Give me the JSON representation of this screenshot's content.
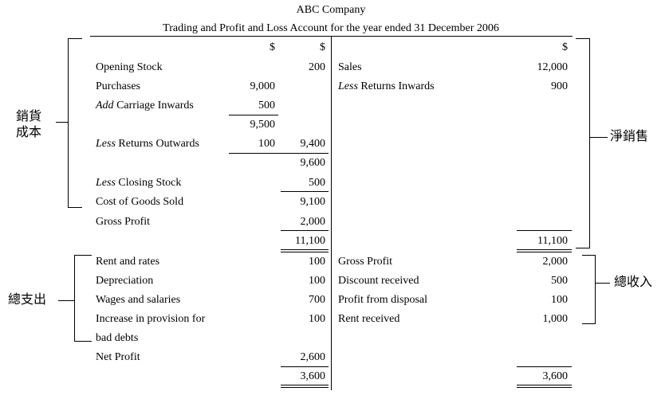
{
  "header": {
    "company": "ABC Company",
    "title": "Trading and Profit and Loss Account for the year ended 31 December 2006"
  },
  "currency": "$",
  "trading": {
    "left": [
      {
        "label": "Opening Stock",
        "amt": "",
        "total": "200"
      },
      {
        "label": "Purchases",
        "amt": "9,000",
        "total": ""
      },
      {
        "prefix": "Add",
        "label": " Carriage Inwards",
        "amt": "500",
        "total": ""
      },
      {
        "label": "",
        "amt": "9,500",
        "total": ""
      },
      {
        "prefix": "Less",
        "label": " Returns Outwards",
        "amt": "100",
        "total": "9,400"
      },
      {
        "label": "",
        "amt": "",
        "total": "9,600"
      },
      {
        "prefix": "Less",
        "label": " Closing Stock",
        "amt": "",
        "total": "500"
      },
      {
        "label": "Cost of Goods Sold",
        "amt": "",
        "total": "9,100"
      },
      {
        "label": "Gross Profit",
        "amt": "",
        "total": "2,000"
      }
    ],
    "right": [
      {
        "label": "Sales",
        "amt": "12,000"
      },
      {
        "prefix": "Less",
        "label": " Returns Inwards",
        "amt": "900"
      }
    ],
    "left_total": "11,100",
    "right_total": "11,100"
  },
  "pl": {
    "left": [
      {
        "label": "Rent and rates",
        "total": "100"
      },
      {
        "label": "Depreciation",
        "total": "100"
      },
      {
        "label": "Wages and salaries",
        "total": "700"
      },
      {
        "label": "Increase in provision for",
        "total": "100"
      },
      {
        "label": "bad debts",
        "total": ""
      },
      {
        "label": "Net Profit",
        "total": "2,600"
      }
    ],
    "right": [
      {
        "label": "Gross Profit",
        "amt": "2,000"
      },
      {
        "label": "Discount received",
        "amt": "500"
      },
      {
        "label": "Profit from disposal",
        "amt": "100"
      },
      {
        "label": "Rent received",
        "amt": "1,000"
      }
    ],
    "left_total": "3,600",
    "right_total": "3,600"
  },
  "annotations": {
    "cost_of_sales_1": "銷貨",
    "cost_of_sales_2": "成本",
    "net_sales": "淨銷售",
    "total_expenses": "總支出",
    "total_revenue": "總收入"
  }
}
